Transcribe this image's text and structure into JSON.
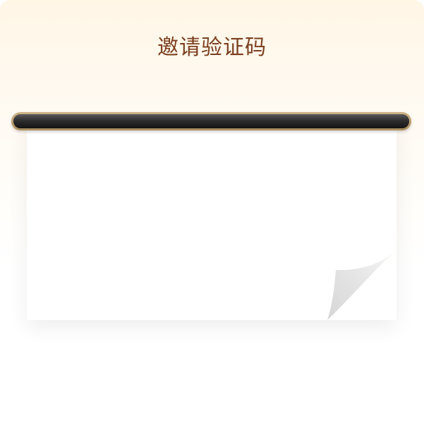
{
  "dialog": {
    "title": "邀请验证码",
    "code": ""
  },
  "colors": {
    "title": "#7a3f1e",
    "rod_frame": "#bba173",
    "rod_core": "#2e2e2e",
    "paper": "#ffffff",
    "curl": "#e2e2e2"
  }
}
